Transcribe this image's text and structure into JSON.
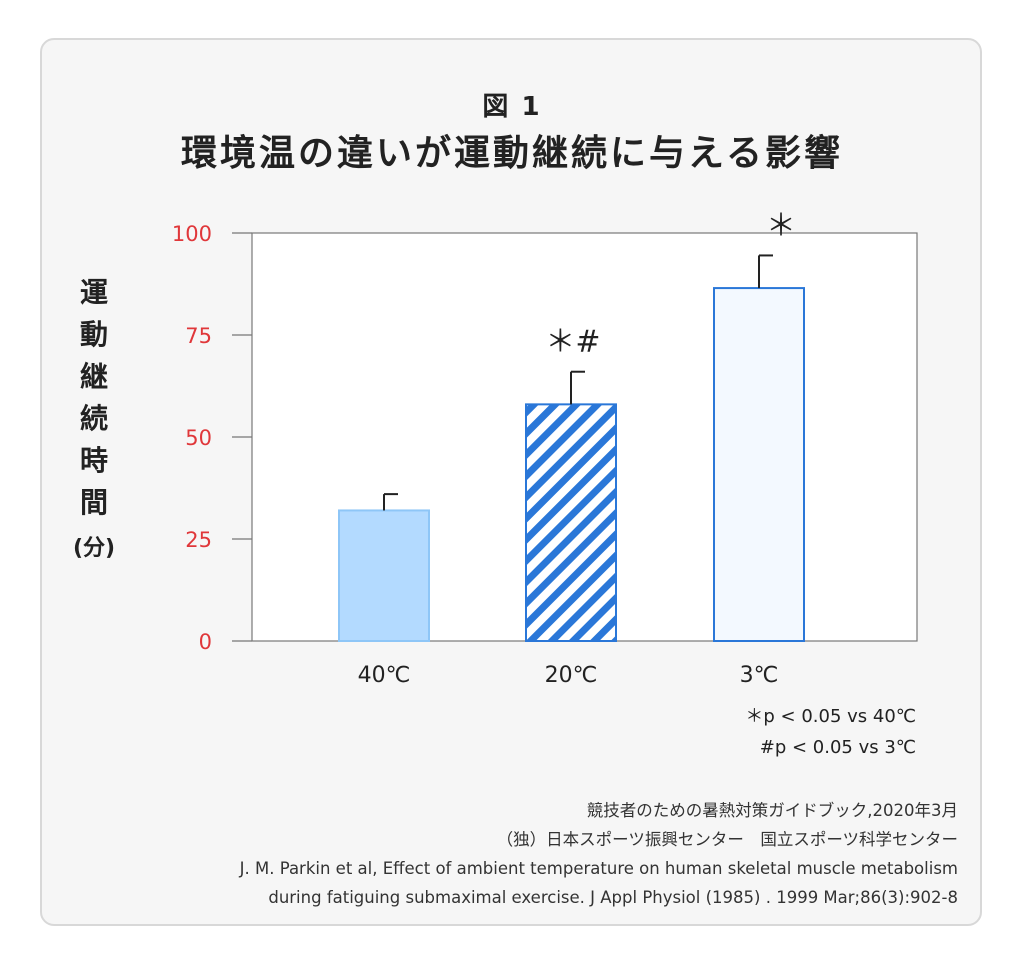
{
  "figure": {
    "label": "図 1",
    "title": "環境温の違いが運動継続に与える影響"
  },
  "chart_data": {
    "type": "bar",
    "ylabel_chars": [
      "運",
      "動",
      "継",
      "続",
      "時",
      "間"
    ],
    "ylabel_unit": "(分)",
    "categories": [
      "40℃",
      "20℃",
      "3℃"
    ],
    "values": [
      32,
      58,
      86.5
    ],
    "errors": [
      4,
      8,
      8
    ],
    "annotations": [
      "",
      "＊#",
      "＊"
    ],
    "yticks": [
      0,
      25,
      50,
      75,
      100
    ],
    "ylim": [
      0,
      100
    ],
    "grid": false,
    "bar_styles": [
      {
        "fill": "#b3daff",
        "stroke": "#8ec6f7",
        "pattern": "solid"
      },
      {
        "fill": "#ffffff",
        "stroke": "#2a77d8",
        "pattern": "diagonal-stripes",
        "stripe_color": "#2a77d8"
      },
      {
        "fill": "#f3f9ff",
        "stroke": "#2a77d8",
        "pattern": "solid"
      }
    ],
    "tick_color": "#e0373a",
    "legend": [
      "＊p < 0.05 vs 40℃",
      "#p < 0.05 vs   3℃"
    ]
  },
  "source": {
    "lines": [
      "競技者のための暑熱対策ガイドブック,2020年3月",
      "（独）日本スポーツ振興センター　国立スポーツ科学センター",
      "J. M. Parkin et al, Effect of ambient temperature on human skeletal muscle metabolism",
      "during fatiguing submaximal exercise. J Appl Physiol (1985) . 1999 Mar;86(3):902-8"
    ]
  }
}
